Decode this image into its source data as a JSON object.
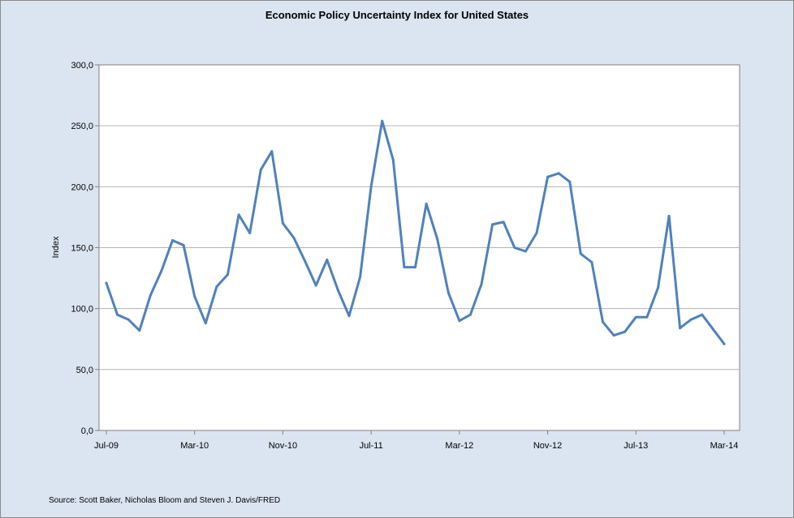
{
  "chart_data": {
    "type": "line",
    "title": "Economic Policy Uncertainty Index for United States",
    "xlabel": "",
    "ylabel": "Index",
    "source": "Source: Scott Baker, Nicholas Bloom and Steven J. Davis/FRED",
    "ylim": [
      0,
      300
    ],
    "y_ticks": [
      "0,0",
      "50,0",
      "100,0",
      "150,0",
      "200,0",
      "250,0",
      "300,0"
    ],
    "x_tick_labels": [
      {
        "label": "Jul-09",
        "month": "2009-07"
      },
      {
        "label": "Mar-10",
        "month": "2010-03"
      },
      {
        "label": "Nov-10",
        "month": "2010-11"
      },
      {
        "label": "Jul-11",
        "month": "2011-07"
      },
      {
        "label": "Mar-12",
        "month": "2012-03"
      },
      {
        "label": "Nov-12",
        "month": "2012-11"
      },
      {
        "label": "Jul-13",
        "month": "2013-07"
      },
      {
        "label": "Mar-14",
        "month": "2014-03"
      }
    ],
    "grid": true,
    "line_color": "#4f81bd",
    "series": [
      {
        "x": [
          "2009-07",
          "2009-08",
          "2009-09",
          "2009-10",
          "2009-11",
          "2009-12",
          "2010-01",
          "2010-02",
          "2010-03",
          "2010-04",
          "2010-05",
          "2010-06",
          "2010-07",
          "2010-08",
          "2010-09",
          "2010-10",
          "2010-11",
          "2010-12",
          "2011-01",
          "2011-02",
          "2011-03",
          "2011-04",
          "2011-05",
          "2011-06",
          "2011-07",
          "2011-08",
          "2011-09",
          "2011-10",
          "2011-11",
          "2011-12",
          "2012-01",
          "2012-02",
          "2012-03",
          "2012-04",
          "2012-05",
          "2012-06",
          "2012-07",
          "2012-08",
          "2012-09",
          "2012-10",
          "2012-11",
          "2012-12",
          "2013-01",
          "2013-02",
          "2013-03",
          "2013-04",
          "2013-05",
          "2013-06",
          "2013-07",
          "2013-08",
          "2013-09",
          "2013-10",
          "2013-11",
          "2013-12",
          "2014-01",
          "2014-02",
          "2014-03"
        ],
        "values": [
          121,
          95,
          91,
          82,
          111,
          131,
          156,
          152,
          110,
          88,
          118,
          128,
          177,
          162,
          214,
          229,
          170,
          158,
          139,
          119,
          140,
          115,
          94,
          126,
          200,
          254,
          222,
          134,
          134,
          186,
          157,
          113,
          90,
          95,
          120,
          169,
          171,
          150,
          147,
          162,
          208,
          211,
          204,
          145,
          138,
          89,
          78,
          81,
          93,
          93,
          117,
          176,
          84,
          91,
          95,
          83,
          71
        ]
      }
    ]
  }
}
